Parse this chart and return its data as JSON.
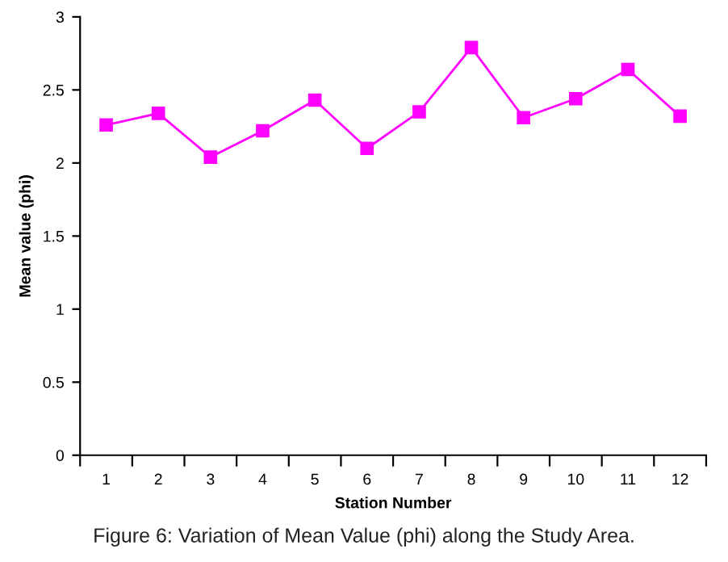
{
  "chart_data": {
    "type": "line",
    "xlabel": "Station Number",
    "ylabel": "Mean value (phi)",
    "categories": [
      "1",
      "2",
      "3",
      "4",
      "5",
      "6",
      "7",
      "8",
      "9",
      "10",
      "11",
      "12"
    ],
    "series": [
      {
        "color": "#ff00ff",
        "values": [
          2.26,
          2.34,
          2.04,
          2.22,
          2.43,
          2.1,
          2.35,
          2.79,
          2.31,
          2.44,
          2.64,
          2.32
        ]
      }
    ],
    "ylim": [
      0,
      3
    ],
    "yticks": [
      0,
      0.5,
      1,
      1.5,
      2,
      2.5,
      3
    ],
    "grid": false,
    "legend": false,
    "marker": "square",
    "line_style": "solid",
    "annotations": [
      "Figure 6: Variation of Mean Value (phi) along the Study Area."
    ]
  }
}
